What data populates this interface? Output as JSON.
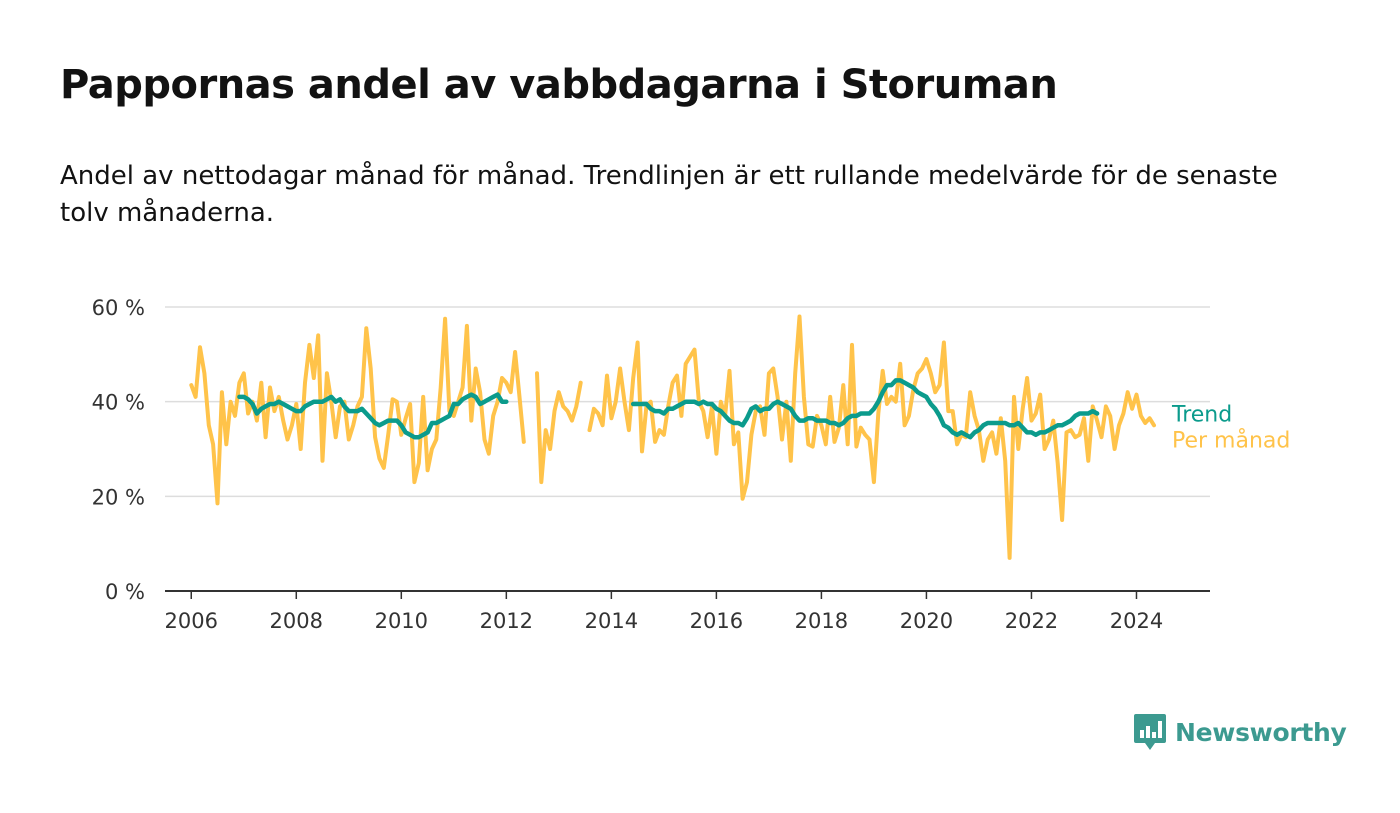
{
  "title": "Pappornas andel av vabbdagarna i Storuman",
  "subtitle": "Andel av nettodagar månad för månad. Trendlinjen är ett rullande medelvärde för de senaste tolv månaderna.",
  "brand": {
    "name": "Newsworthy",
    "icon": "newsworthy-logo-icon",
    "color": "#3c9a90"
  },
  "colors": {
    "monthly": "#ffc34a",
    "trend": "#0b9b8c",
    "grid": "#dddddd",
    "axis": "#333333"
  },
  "chart_data": {
    "type": "line",
    "y_unit": "%",
    "ylim": [
      0,
      60
    ],
    "yticks": [
      {
        "value": 0,
        "label": "0 %"
      },
      {
        "value": 20,
        "label": "20 %"
      },
      {
        "value": 40,
        "label": "40 %"
      },
      {
        "value": 60,
        "label": "60 %"
      }
    ],
    "xlim": [
      2005.5,
      2025.4
    ],
    "xticks": [
      {
        "value": 2006,
        "label": "2006"
      },
      {
        "value": 2008,
        "label": "2008"
      },
      {
        "value": 2010,
        "label": "2010"
      },
      {
        "value": 2012,
        "label": "2012"
      },
      {
        "value": 2014,
        "label": "2014"
      },
      {
        "value": 2016,
        "label": "2016"
      },
      {
        "value": 2018,
        "label": "2018"
      },
      {
        "value": 2020,
        "label": "2020"
      },
      {
        "value": 2022,
        "label": "2022"
      },
      {
        "value": 2024,
        "label": "2024"
      }
    ],
    "grid": true,
    "legend": "end-of-line labels",
    "series": [
      {
        "name": "Per månad",
        "segments": [
          {
            "start": "2006-01",
            "values": [
              43.5,
              41,
              51.5,
              46,
              35,
              31,
              18.5,
              42,
              31,
              40,
              37,
              44,
              46,
              37.5,
              40,
              36,
              44,
              32.5,
              43,
              38,
              41,
              36,
              32,
              35,
              39.5,
              30,
              44,
              52,
              45,
              54,
              27.5,
              46,
              40,
              32.5,
              39,
              40,
              32,
              35,
              39,
              41,
              55.5,
              47,
              32.5,
              28,
              26,
              33,
              40.5,
              40,
              33,
              36.5,
              39.5,
              23,
              27,
              41,
              25.5,
              30,
              32,
              43,
              57.5,
              38,
              37,
              40,
              43,
              56,
              36,
              47,
              42,
              32,
              29,
              37,
              40,
              45,
              44,
              42,
              50.5,
              41,
              31.5
            ]
          },
          {
            "start": "2012-08",
            "values": [
              46,
              23,
              34,
              30,
              38,
              42,
              39,
              38,
              36,
              39,
              44
            ]
          },
          {
            "start": "2013-08",
            "values": [
              34,
              38.5,
              37.5,
              35,
              45.5,
              36.5,
              40,
              47,
              40,
              34,
              45,
              52.5,
              29.5,
              39,
              40,
              31.5,
              34,
              33,
              39,
              44,
              45.5,
              37,
              48,
              49.5,
              51,
              40,
              38,
              32.5,
              39,
              29,
              40,
              37,
              46.5,
              31,
              33.5,
              19.5,
              23,
              33,
              38,
              39,
              33,
              46,
              47,
              41,
              32,
              40,
              27.5,
              46,
              58,
              41,
              31,
              30.5,
              37,
              35,
              31,
              41,
              31.5,
              34.5,
              43.5,
              31,
              52,
              30.5,
              34.5,
              33,
              32,
              23,
              37.5,
              46.5,
              39.5,
              41,
              40,
              48,
              35,
              37,
              42.5,
              46,
              47,
              49,
              46,
              42,
              43.5,
              52.5,
              38,
              38,
              31,
              33,
              32.5,
              42,
              37,
              34,
              27.5,
              32,
              33.5,
              29,
              36.5,
              27.5,
              7,
              41,
              30,
              38.5,
              45,
              36,
              37.5,
              41.5,
              30,
              32,
              36,
              27,
              15,
              33.5,
              34,
              32.5,
              33,
              36.5,
              27.5,
              39,
              36,
              32.5,
              39,
              37,
              30,
              35,
              37.5,
              42,
              38.5,
              41.5,
              37,
              35.5,
              36.5,
              35
            ]
          }
        ]
      },
      {
        "name": "Trend",
        "segments": [
          {
            "start": "2006-12",
            "values": [
              41,
              41,
              40.5,
              39.5,
              37.5,
              38.5,
              39,
              39.5,
              39.5,
              40,
              39.5,
              39,
              38.5,
              38,
              38,
              39,
              39.5,
              40,
              40,
              40,
              40.5,
              41,
              40,
              40.5,
              39,
              38,
              38,
              38,
              38.5,
              37.5,
              36.5,
              35.5,
              35,
              35.5,
              36,
              36,
              36,
              35,
              33.5,
              33,
              32.5,
              32.5,
              33,
              33.5,
              35.5,
              35.5,
              36,
              36.5,
              37,
              39.5,
              39.5,
              40.5,
              41,
              41.5,
              41,
              39.5,
              40,
              40.5,
              41,
              41.5,
              40,
              40
            ]
          },
          {
            "start": "2014-06",
            "values": [
              39.5,
              39.5,
              39.5,
              39.5,
              38.5,
              38,
              38,
              37.5,
              38.5,
              38.5,
              39,
              39.5,
              40,
              40,
              40,
              39.5,
              40,
              39.5,
              39.5,
              38.5,
              38,
              37,
              36,
              35.5,
              35.5,
              35,
              36.5,
              38.5,
              39,
              38,
              38.5,
              38.5,
              39.5,
              40,
              39.5,
              39,
              38.5,
              37,
              36,
              36,
              36.5,
              36.5,
              36,
              36,
              36,
              35.5,
              35.5,
              35,
              35.5,
              36.5,
              37,
              37,
              37.5,
              37.5,
              37.5,
              38.5,
              40,
              42,
              43.5,
              43.5,
              44.5,
              44.5,
              44,
              43.5,
              43,
              42,
              41.5,
              41,
              39.5,
              38.5,
              37,
              35,
              34.5,
              33.5,
              33,
              33.5,
              33,
              32.5,
              33.5,
              34,
              35,
              35.5,
              35.5,
              35.5,
              35.5,
              35.5,
              35,
              35,
              35.5,
              34.5,
              33.5,
              33.5,
              33,
              33.5,
              33.5,
              34,
              34.5,
              35,
              35,
              35.5,
              36,
              37,
              37.5,
              37.5,
              37.5,
              38,
              37.5
            ]
          }
        ]
      }
    ]
  }
}
